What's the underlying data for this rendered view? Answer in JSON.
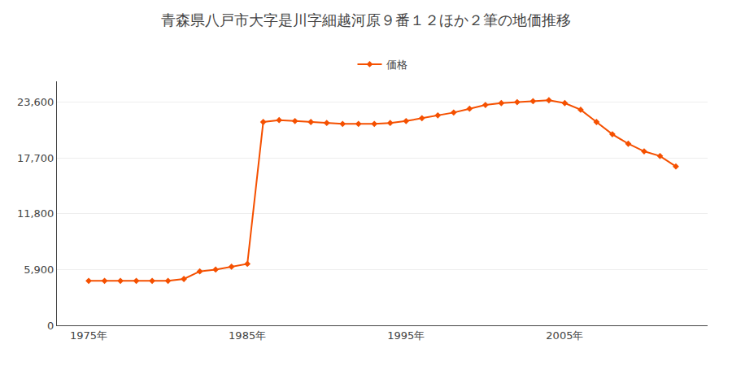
{
  "chart_data": {
    "type": "line",
    "title": "青森県八戸市大字是川字細越河原９番１２ほか２筆の地価推移",
    "series": [
      {
        "name": "価格",
        "color": "#f55000",
        "marker": "diamond",
        "values": [
          4700,
          4700,
          4700,
          4700,
          4700,
          4700,
          4900,
          5700,
          5900,
          6200,
          6500,
          21500,
          21700,
          21600,
          21500,
          21400,
          21300,
          21300,
          21300,
          21400,
          21600,
          21900,
          22200,
          22500,
          22900,
          23300,
          23500,
          23600,
          23700,
          23800,
          23500,
          22800,
          21500,
          20200,
          19200,
          18400,
          17900,
          16800
        ]
      }
    ],
    "x": [
      1975,
      1976,
      1977,
      1978,
      1979,
      1980,
      1981,
      1982,
      1983,
      1984,
      1985,
      1986,
      1987,
      1988,
      1989,
      1990,
      1991,
      1992,
      1993,
      1994,
      1995,
      1996,
      1997,
      1998,
      1999,
      2000,
      2001,
      2002,
      2003,
      2004,
      2005,
      2006,
      2007,
      2008,
      2009,
      2010,
      2011,
      2012
    ],
    "xlim": [
      1973,
      2014
    ],
    "xticks": [
      {
        "value": 1975,
        "label": "1975年"
      },
      {
        "value": 1985,
        "label": "1985年"
      },
      {
        "value": 1995,
        "label": "1995年"
      },
      {
        "value": 2005,
        "label": "2005年"
      }
    ],
    "ylim": [
      0,
      25800
    ],
    "yticks": [
      0,
      {
        "value": 5900,
        "label": "5,900"
      },
      {
        "value": 11800,
        "label": "11,800"
      },
      {
        "value": 17700,
        "label": "17,700"
      },
      {
        "value": 23600,
        "label": "23,600"
      }
    ],
    "grid": "y",
    "legend": "top"
  }
}
